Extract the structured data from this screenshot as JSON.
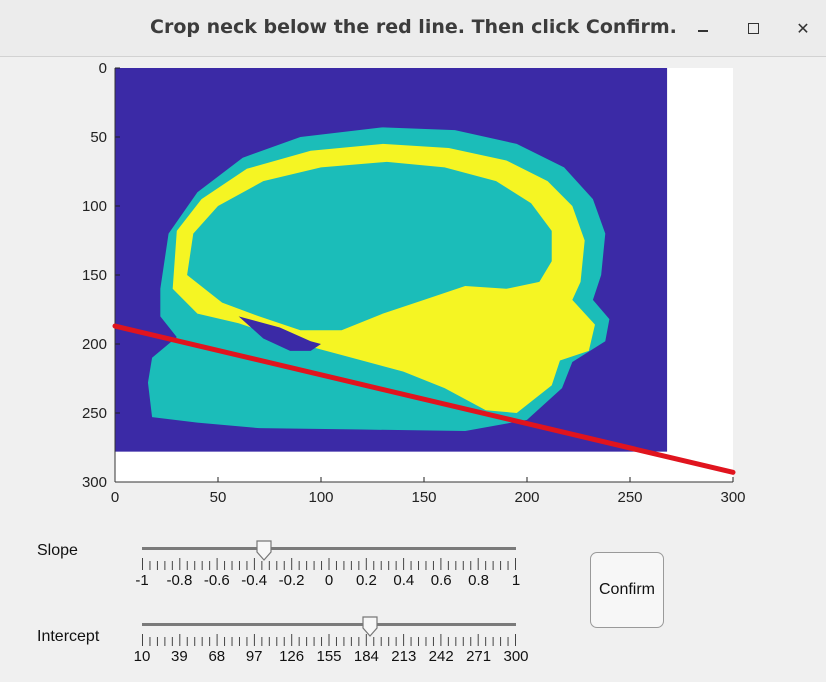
{
  "window": {
    "title": "Crop neck below the red line. Then click Confirm.",
    "buttons": [
      "minimize-icon",
      "maximize-icon",
      "close-icon"
    ]
  },
  "chart_data": {
    "type": "image",
    "xlim": [
      0,
      300
    ],
    "ylim": [
      300,
      0
    ],
    "x_ticks": [
      0,
      50,
      100,
      150,
      200,
      250,
      300
    ],
    "y_ticks": [
      0,
      50,
      100,
      150,
      200,
      250,
      300
    ],
    "x_tick_labels": [
      "0",
      "50",
      "100",
      "150",
      "200",
      "250",
      "300"
    ],
    "y_tick_labels": [
      "0",
      "50",
      "100",
      "150",
      "200",
      "250",
      "300"
    ],
    "image_extent": {
      "width": 268,
      "height": 278
    },
    "colors": {
      "background": "#3b2aa6",
      "outer_tissue": "#1bbdb9",
      "bright_layer": "#f5f523",
      "outside_image": "#ffffff",
      "crop_line": "#e0141e"
    },
    "crop_line": {
      "x": [
        0,
        300
      ],
      "y": [
        187,
        293
      ]
    }
  },
  "controls": {
    "slope": {
      "label": "Slope",
      "min": -1,
      "max": 1,
      "value": -0.35,
      "tick_labels": [
        "-1",
        "-0.8",
        "-0.6",
        "-0.4",
        "-0.2",
        "0",
        "0.2",
        "0.4",
        "0.6",
        "0.8",
        "1"
      ]
    },
    "intercept": {
      "label": "Intercept",
      "min": 10,
      "max": 300,
      "value": 187,
      "tick_labels": [
        "10",
        "39",
        "68",
        "97",
        "126",
        "155",
        "184",
        "213",
        "242",
        "271",
        "300"
      ]
    },
    "confirm_label": "Confirm"
  }
}
